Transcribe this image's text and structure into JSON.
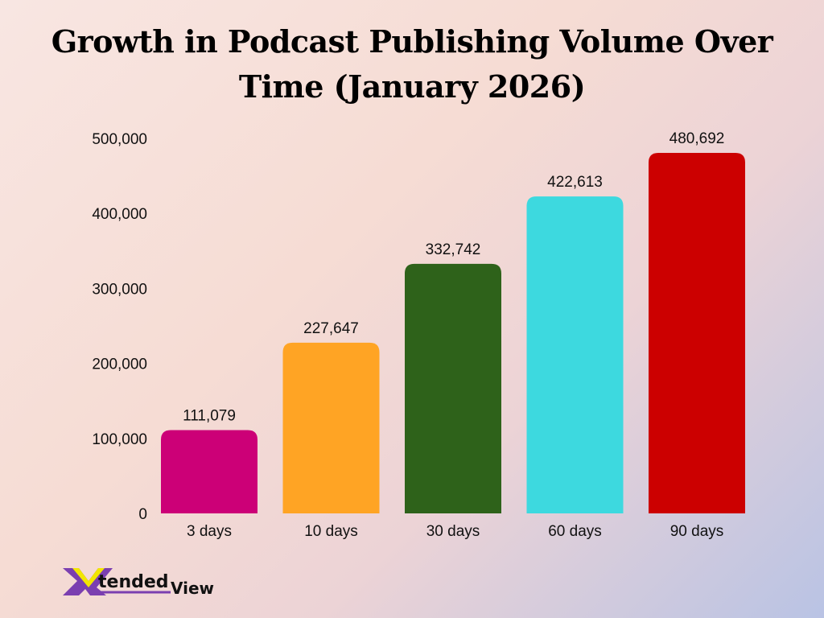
{
  "chart_data": {
    "type": "bar",
    "title": "Growth in Podcast Publishing Volume Over Time (January 2026)",
    "xlabel": "",
    "ylabel": "",
    "categories": [
      "3 days",
      "10 days",
      "30 days",
      "60 days",
      "90 days"
    ],
    "values": [
      111079,
      227647,
      332742,
      422613,
      480692
    ],
    "data_labels": [
      "111,079",
      "227,647",
      "332,742",
      "422,613",
      "480,692"
    ],
    "colors": [
      "#cc0077",
      "#ffa424",
      "#2e621a",
      "#3dd9df",
      "#cc0000"
    ],
    "ylim": [
      0,
      500000
    ],
    "yticks": [
      0,
      100000,
      200000,
      300000,
      400000,
      500000
    ],
    "ytick_labels": [
      "0",
      "100,000",
      "200,000",
      "300,000",
      "400,000",
      "500,000"
    ],
    "grid": false,
    "legend": "none"
  },
  "logo": {
    "text": "XtendedView",
    "colors": [
      "#7b3fb0",
      "#f2e600"
    ]
  }
}
